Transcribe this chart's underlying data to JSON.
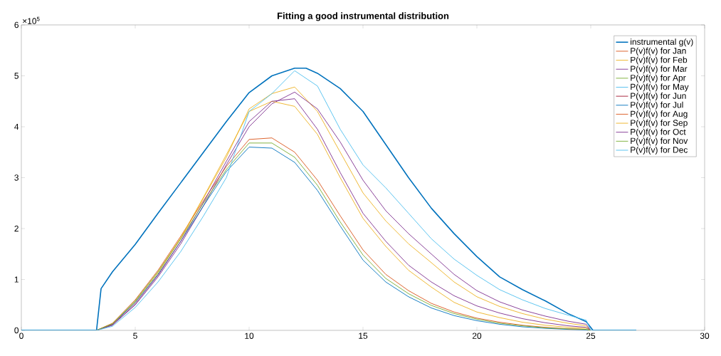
{
  "chart_data": {
    "type": "line",
    "title": "Fitting a good instrumental distribution",
    "annotations": [
      "×10$^{5}$"
    ],
    "x": [
      0,
      3.3,
      4,
      5,
      6,
      7,
      8,
      9,
      10,
      11,
      12,
      13,
      14,
      15,
      16,
      17,
      18,
      19,
      20,
      21,
      22,
      23,
      24,
      24.8,
      25,
      27
    ],
    "series": [
      {
        "name": "instrumental g(v)",
        "color": "#0072bd",
        "x": [
          0,
          3.3,
          3.5,
          4,
          5,
          6,
          7,
          8,
          9,
          10,
          11,
          12,
          12.5,
          13,
          14,
          15,
          16,
          17,
          18,
          19,
          20,
          21,
          22,
          23,
          24,
          24.8,
          25.1,
          27
        ],
        "values": [
          0,
          0,
          0.82,
          1.15,
          1.69,
          2.3,
          2.9,
          3.5,
          4.1,
          4.67,
          5.0,
          5.15,
          5.15,
          5.05,
          4.75,
          4.3,
          3.65,
          3.0,
          2.4,
          1.9,
          1.45,
          1.05,
          0.8,
          0.58,
          0.33,
          0.17,
          0,
          0
        ]
      },
      {
        "name": "P(v)f(v) for Jan",
        "color": "#d95319",
        "values": [
          null,
          null,
          null,
          null,
          null,
          null,
          null,
          null,
          null,
          null,
          null,
          null,
          null,
          null,
          null,
          null,
          null,
          null,
          null,
          null,
          null,
          null,
          null,
          null,
          null,
          null
        ]
      },
      {
        "name": "P(v)f(v) for Feb",
        "color": "#edb120",
        "values": [
          null,
          0,
          0.12,
          0.55,
          1.12,
          1.8,
          2.6,
          3.4,
          4.35,
          4.65,
          4.78,
          4.3,
          3.5,
          2.7,
          2.15,
          1.7,
          1.33,
          0.95,
          0.66,
          0.47,
          0.33,
          0.22,
          0.14,
          0.09,
          0,
          null
        ]
      },
      {
        "name": "P(v)f(v) for Mar",
        "color": "#7e2f8e",
        "values": [
          null,
          0,
          0.1,
          0.5,
          1.05,
          1.7,
          2.45,
          3.25,
          4.0,
          4.45,
          4.68,
          4.35,
          3.7,
          2.95,
          2.35,
          1.9,
          1.5,
          1.1,
          0.78,
          0.56,
          0.4,
          0.28,
          0.18,
          0.12,
          0,
          null
        ]
      },
      {
        "name": "P(v)f(v) for Apr",
        "color": "#77ac30",
        "values": [
          null,
          null,
          null,
          null,
          null,
          null,
          null,
          null,
          null,
          null,
          null,
          null,
          null,
          null,
          null,
          null,
          null,
          null,
          null,
          null,
          null,
          null,
          null,
          null,
          null,
          null
        ]
      },
      {
        "name": "P(v)f(v) for May",
        "color": "#4dbeee",
        "values": [
          null,
          null,
          null,
          null,
          null,
          null,
          null,
          null,
          null,
          null,
          null,
          null,
          null,
          null,
          null,
          null,
          null,
          null,
          null,
          null,
          null,
          null,
          null,
          null,
          null,
          null
        ]
      },
      {
        "name": "P(v)f(v) for Jun",
        "color": "#a2142f",
        "values": [
          null,
          null,
          null,
          null,
          null,
          null,
          null,
          null,
          null,
          null,
          null,
          null,
          null,
          null,
          null,
          null,
          null,
          null,
          null,
          null,
          null,
          null,
          null,
          null,
          null,
          null
        ]
      },
      {
        "name": "P(v)f(v) for Jul",
        "color": "#0072bd",
        "values": [
          null,
          0,
          0.12,
          0.55,
          1.1,
          1.75,
          2.45,
          3.12,
          3.6,
          3.58,
          3.3,
          2.75,
          2.05,
          1.38,
          0.95,
          0.66,
          0.44,
          0.29,
          0.19,
          0.12,
          0.07,
          0.04,
          0.02,
          0.01,
          0,
          null
        ]
      },
      {
        "name": "P(v)f(v) for Aug",
        "color": "#d95319",
        "values": [
          null,
          0,
          0.14,
          0.6,
          1.18,
          1.85,
          2.55,
          3.22,
          3.75,
          3.78,
          3.5,
          2.95,
          2.25,
          1.58,
          1.1,
          0.78,
          0.53,
          0.36,
          0.24,
          0.16,
          0.1,
          0.06,
          0.03,
          0.02,
          null,
          null
        ]
      },
      {
        "name": "P(v)f(v) for Sep",
        "color": "#edb120",
        "values": [
          null,
          0,
          0.13,
          0.57,
          1.15,
          1.82,
          2.62,
          3.45,
          4.3,
          4.5,
          4.4,
          3.85,
          3.0,
          2.2,
          1.65,
          1.18,
          0.85,
          0.55,
          0.36,
          0.25,
          0.16,
          0.1,
          0.06,
          0.04,
          0,
          null
        ]
      },
      {
        "name": "P(v)f(v) for Oct",
        "color": "#7e2f8e",
        "values": [
          null,
          0,
          0.11,
          0.52,
          1.08,
          1.75,
          2.52,
          3.32,
          4.1,
          4.5,
          4.55,
          3.95,
          3.1,
          2.3,
          1.75,
          1.28,
          0.95,
          0.68,
          0.48,
          0.34,
          0.23,
          0.15,
          0.09,
          0.06,
          0,
          null
        ]
      },
      {
        "name": "P(v)f(v) for Nov",
        "color": "#77ac30",
        "values": [
          null,
          0,
          0.13,
          0.58,
          1.15,
          1.8,
          2.5,
          3.16,
          3.68,
          3.68,
          3.4,
          2.85,
          2.13,
          1.48,
          1.02,
          0.72,
          0.49,
          0.33,
          0.22,
          0.14,
          0.09,
          0.05,
          0.03,
          0.02,
          0,
          null
        ]
      },
      {
        "name": "P(v)f(v) for Dec",
        "color": "#4dbeee",
        "values": [
          0,
          0,
          0.08,
          0.45,
          0.95,
          1.55,
          2.25,
          3.0,
          4.3,
          4.65,
          5.1,
          4.8,
          3.95,
          3.25,
          2.8,
          2.3,
          1.8,
          1.4,
          1.08,
          0.8,
          0.6,
          0.43,
          0.3,
          0.2,
          0,
          0
        ]
      }
    ],
    "xlim": [
      0,
      30
    ],
    "ylim": [
      0,
      6
    ],
    "xticks": [
      0,
      5,
      10,
      15,
      20,
      25,
      30
    ],
    "yticks": [
      0,
      1,
      2,
      3,
      4,
      5,
      6
    ],
    "legend": "top right",
    "line_style": "solid",
    "marker": "none"
  }
}
